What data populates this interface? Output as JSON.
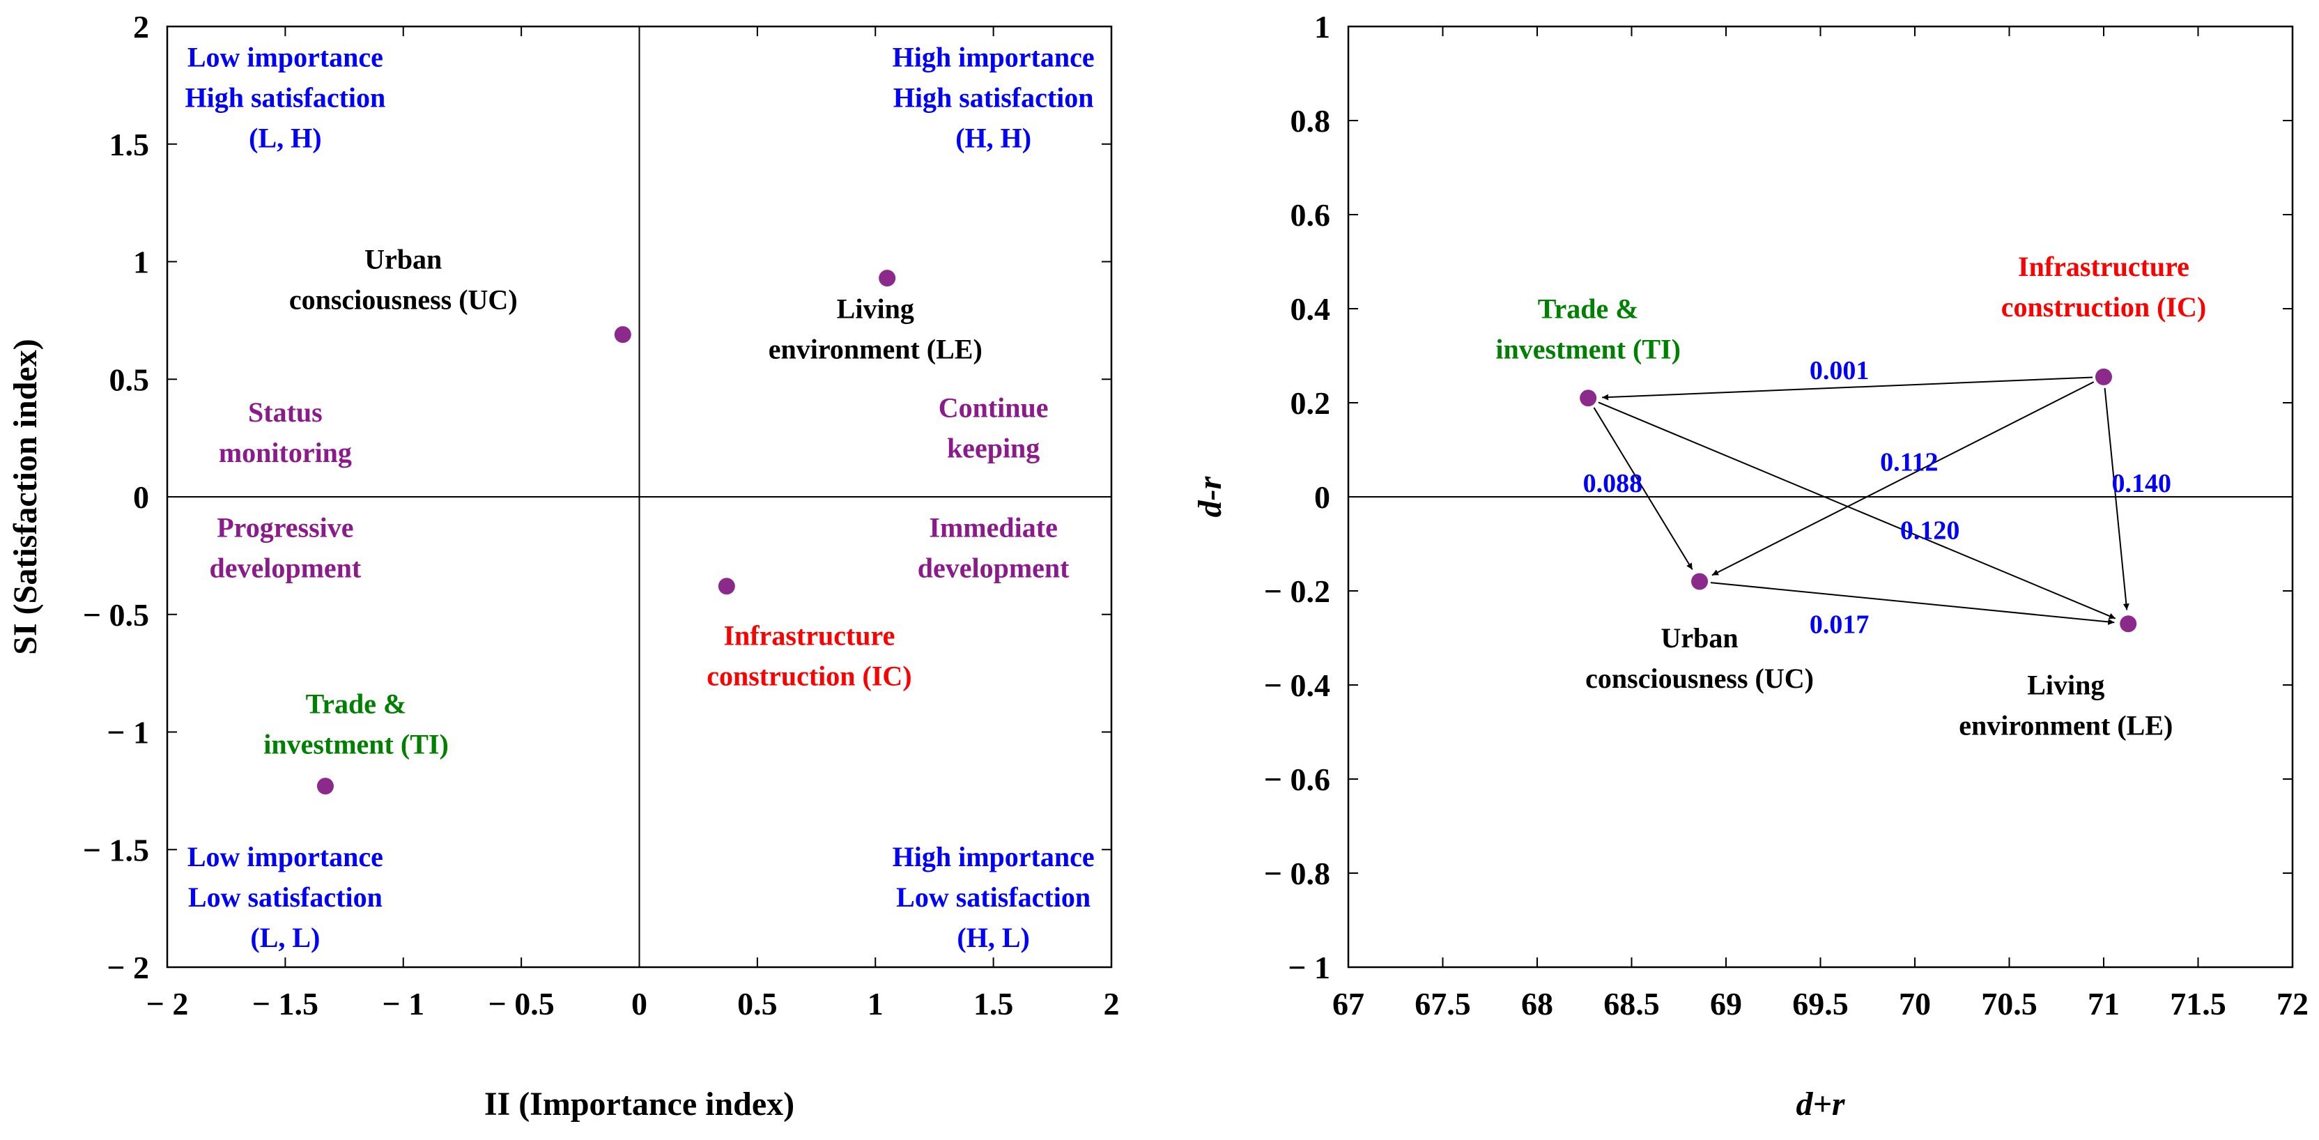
{
  "chart_data": [
    {
      "type": "scatter",
      "xlabel": "II (Importance index)",
      "ylabel": "SI (Satisfaction index)",
      "xlim": [
        -2,
        2
      ],
      "ylim": [
        -2,
        2
      ],
      "xticks": [
        "− 2",
        "− 1.5",
        "− 1",
        "− 0.5",
        "0",
        "0.5",
        "1",
        "1.5",
        "2"
      ],
      "yticks": [
        "2",
        "1.5",
        "1",
        "0.5",
        "0",
        "− 0.5",
        "− 1",
        "− 1.5",
        "− 2"
      ],
      "xtick_values": [
        -2,
        -1.5,
        -1,
        -0.5,
        0,
        0.5,
        1,
        1.5,
        2
      ],
      "ytick_values": [
        2,
        1.5,
        1,
        0.5,
        0,
        -0.5,
        -1,
        -1.5,
        -2
      ],
      "quadrant_lines": {
        "x": 0,
        "y": 0
      },
      "marker_color": "#8b2a8b",
      "points": [
        {
          "id": "UC",
          "x": -0.07,
          "y": 0.69,
          "label_lines": [
            "Urban",
            "consciousness (UC)"
          ],
          "color": "#000000",
          "label_at": [
            -1.0,
            0.97
          ]
        },
        {
          "id": "LE",
          "x": 1.05,
          "y": 0.93,
          "label_lines": [
            "Living",
            "environment (LE)"
          ],
          "color": "#000000",
          "label_at": [
            1.0,
            0.76
          ]
        },
        {
          "id": "IC",
          "x": 0.37,
          "y": -0.38,
          "label_lines": [
            "Infrastructure",
            "construction (IC)"
          ],
          "color": "#ff0000",
          "label_at": [
            0.72,
            -0.63
          ]
        },
        {
          "id": "TI",
          "x": -1.33,
          "y": -1.23,
          "label_lines": [
            "Trade &",
            "investment (TI)"
          ],
          "color": "#008000",
          "label_at": [
            -1.2,
            -0.92
          ]
        }
      ],
      "annotations": [
        {
          "lines": [
            "Low importance",
            "High satisfaction",
            "(L, H)"
          ],
          "color": "#0000ff",
          "at": [
            -1.5,
            1.83
          ]
        },
        {
          "lines": [
            "High importance",
            "High satisfaction",
            "(H, H)"
          ],
          "color": "#0000ff",
          "at": [
            1.5,
            1.83
          ]
        },
        {
          "lines": [
            "Low importance",
            "Low satisfaction",
            "(L, L)"
          ],
          "color": "#0000ff",
          "at": [
            -1.5,
            -1.57
          ]
        },
        {
          "lines": [
            "High importance",
            "Low satisfaction",
            "(H, L)"
          ],
          "color": "#0000ff",
          "at": [
            1.5,
            -1.57
          ]
        },
        {
          "lines": [
            "Status",
            "monitoring"
          ],
          "color": "#8b1a8b",
          "at": [
            -1.5,
            0.32
          ]
        },
        {
          "lines": [
            "Continue",
            "keeping"
          ],
          "color": "#8b1a8b",
          "at": [
            1.5,
            0.34
          ]
        },
        {
          "lines": [
            "Progressive",
            "development"
          ],
          "color": "#8b1a8b",
          "at": [
            -1.5,
            -0.17
          ]
        },
        {
          "lines": [
            "Immediate",
            "development"
          ],
          "color": "#8b1a8b",
          "at": [
            1.5,
            -0.17
          ]
        }
      ]
    },
    {
      "type": "scatter",
      "xlabel": "d+r",
      "ylabel": "d-r",
      "xlim": [
        67,
        72
      ],
      "ylim": [
        -1,
        1
      ],
      "xticks": [
        "67",
        "67.5",
        "68",
        "68.5",
        "69",
        "69.5",
        "70",
        "70.5",
        "71",
        "71.5",
        "72"
      ],
      "yticks": [
        "1",
        "0.8",
        "0.6",
        "0.4",
        "0.2",
        "0",
        "− 0.2",
        "− 0.4",
        "− 0.6",
        "− 0.8",
        "− 1"
      ],
      "xtick_values": [
        67,
        67.5,
        68,
        68.5,
        69,
        69.5,
        70,
        70.5,
        71,
        71.5,
        72
      ],
      "ytick_values": [
        1,
        0.8,
        0.6,
        0.4,
        0.2,
        0,
        -0.2,
        -0.4,
        -0.6,
        -0.8,
        -1
      ],
      "zero_line": 0,
      "marker_color": "#8b2a8b",
      "edge_label_color": "#0000ff",
      "points": [
        {
          "id": "TI",
          "x": 68.27,
          "y": 0.21,
          "label_lines": [
            "Trade &",
            "investment (TI)"
          ],
          "color": "#008000",
          "label_at": [
            68.27,
            0.38
          ]
        },
        {
          "id": "IC",
          "x": 71.0,
          "y": 0.255,
          "label_lines": [
            "Infrastructure",
            "construction (IC)"
          ],
          "color": "#ff0000",
          "label_at": [
            71.0,
            0.47
          ]
        },
        {
          "id": "UC",
          "x": 68.86,
          "y": -0.18,
          "label_lines": [
            "Urban",
            "consciousness (UC)"
          ],
          "color": "#000000",
          "label_at": [
            68.86,
            -0.32
          ]
        },
        {
          "id": "LE",
          "x": 71.13,
          "y": -0.27,
          "label_lines": [
            "Living",
            "environment (LE)"
          ],
          "color": "#000000",
          "label_at": [
            70.8,
            -0.42
          ]
        }
      ],
      "edges": [
        {
          "from": "IC",
          "to": "TI",
          "value": "0.001",
          "label_at": [
            69.6,
            0.27
          ]
        },
        {
          "from": "IC",
          "to": "UC",
          "value": "0.112",
          "label_at": [
            69.97,
            0.075
          ]
        },
        {
          "from": "IC",
          "to": "LE",
          "value": "0.140",
          "label_at": [
            71.2,
            0.03
          ]
        },
        {
          "from": "TI",
          "to": "UC",
          "value": "0.088",
          "label_at": [
            68.4,
            0.03
          ]
        },
        {
          "from": "TI",
          "to": "LE",
          "value": "0.120",
          "label_at": [
            70.08,
            -0.07
          ]
        },
        {
          "from": "UC",
          "to": "LE",
          "value": "0.017",
          "label_at": [
            69.6,
            -0.27
          ]
        }
      ]
    }
  ]
}
